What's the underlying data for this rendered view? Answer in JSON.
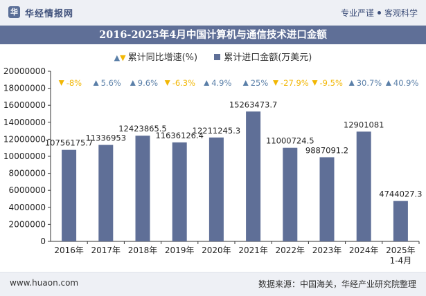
{
  "header": {
    "brand": "华经情报网",
    "logo_letter": "华",
    "tagline_left": "专业严谨",
    "tagline_right": "客观科学"
  },
  "chart_data": {
    "type": "bar",
    "title": "2016-2025年4月中国计算机与通信技术进口金额",
    "categories": [
      "2016年",
      "2017年",
      "2018年",
      "2019年",
      "2020年",
      "2021年",
      "2022年",
      "2023年",
      "2024年",
      "2025年\n1-4月"
    ],
    "series": [
      {
        "name": "累计进口金额(万美元)",
        "values": [
          10756175.7,
          11336953,
          12423865.5,
          11636126.4,
          12211245.3,
          15263473.7,
          11000724.5,
          9887091.2,
          12901081,
          4744027.3
        ],
        "labels": [
          "10756175.7",
          "11336953",
          "12423865.5",
          "11636126.4",
          "12211245.3",
          "15263473.7",
          "11000724.5",
          "9887091.2",
          "12901081",
          "4744027.3"
        ],
        "color": "#5f6f97"
      },
      {
        "name": "累计同比增速(%)",
        "values": [
          -8,
          5.6,
          9.6,
          -6.3,
          4.9,
          25,
          -27.9,
          -9.5,
          30.7,
          40.9
        ],
        "labels": [
          "-8%",
          "5.6%",
          "9.6%",
          "-6.3%",
          "4.9%",
          "25%",
          "-27.9%",
          "-9.5%",
          "30.7%",
          "40.9%"
        ],
        "up_color": "#5a7fa8",
        "down_color": "#f2b705"
      }
    ],
    "yticks": [
      "0",
      "2000000",
      "4000000",
      "6000000",
      "8000000",
      "10000000",
      "12000000",
      "14000000",
      "16000000",
      "18000000",
      "20000000"
    ],
    "ylim": [
      0,
      20000000
    ],
    "grid": false,
    "legend": "top-center"
  },
  "footer": {
    "site": "www.huaon.com",
    "source": "数据来源：中国海关，华经产业研究院整理"
  }
}
